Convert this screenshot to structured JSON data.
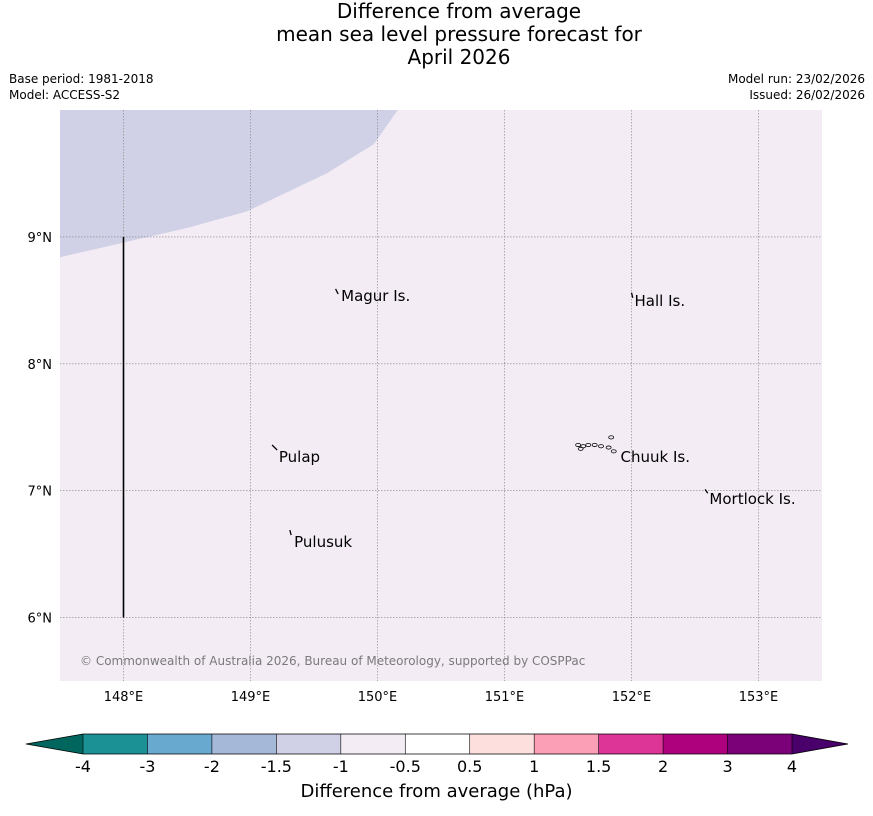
{
  "title": {
    "line1": "Difference from average",
    "line2": "mean sea level pressure forecast for",
    "line3": "April 2026"
  },
  "meta": {
    "base_period": "Base period: 1981-2018",
    "model": "Model: ACCESS-S2",
    "model_run": "Model run: 23/02/2026",
    "issued": "Issued: 26/02/2026"
  },
  "map": {
    "lon_range": [
      147.5,
      153.5
    ],
    "lat_range": [
      5.5,
      10.0
    ],
    "lon_ticks": [
      {
        "value": 148,
        "label": "148°E"
      },
      {
        "value": 149,
        "label": "149°E"
      },
      {
        "value": 150,
        "label": "150°E"
      },
      {
        "value": 151,
        "label": "151°E"
      },
      {
        "value": 152,
        "label": "152°E"
      },
      {
        "value": 153,
        "label": "153°E"
      }
    ],
    "lat_ticks": [
      {
        "value": 9,
        "label": "9°N"
      },
      {
        "value": 8,
        "label": "8°N"
      },
      {
        "value": 7,
        "label": "7°N"
      },
      {
        "value": 6,
        "label": "6°N"
      }
    ],
    "background_color": "#f3ecf5",
    "lower_anomaly_color": "#d0d1e6",
    "places": [
      {
        "name": "Magur Is.",
        "lon": 149.69,
        "lat": 8.55
      },
      {
        "name": "Hall Is.",
        "lon": 152.0,
        "lat": 8.51
      },
      {
        "name": "Pulap",
        "lon": 149.2,
        "lat": 7.28
      },
      {
        "name": "Chuuk Is.",
        "lon": 151.89,
        "lat": 7.28
      },
      {
        "name": "Mortlock Is.",
        "lon": 152.59,
        "lat": 6.95
      },
      {
        "name": "Pulusuk",
        "lon": 149.32,
        "lat": 6.61
      }
    ],
    "copyright": "© Commonwealth of Australia 2026, Bureau of Meteorology, supported by COSPPac"
  },
  "colorbar": {
    "title": "Difference from average (hPa)",
    "ticks": [
      "-4",
      "-3",
      "-2",
      "-1.5",
      "-1",
      "-0.5",
      "0.5",
      "1",
      "1.5",
      "2",
      "3",
      "4"
    ],
    "colors": [
      "#1b9196",
      "#67a9cf",
      "#a6b8d8",
      "#d0d1e6",
      "#f3ecf5",
      "#ffffff",
      "#fde0dd",
      "#fa9fb5",
      "#dd3497",
      "#ae017e",
      "#7a0177"
    ],
    "under_color": "#01665e",
    "over_color": "#49006a"
  }
}
